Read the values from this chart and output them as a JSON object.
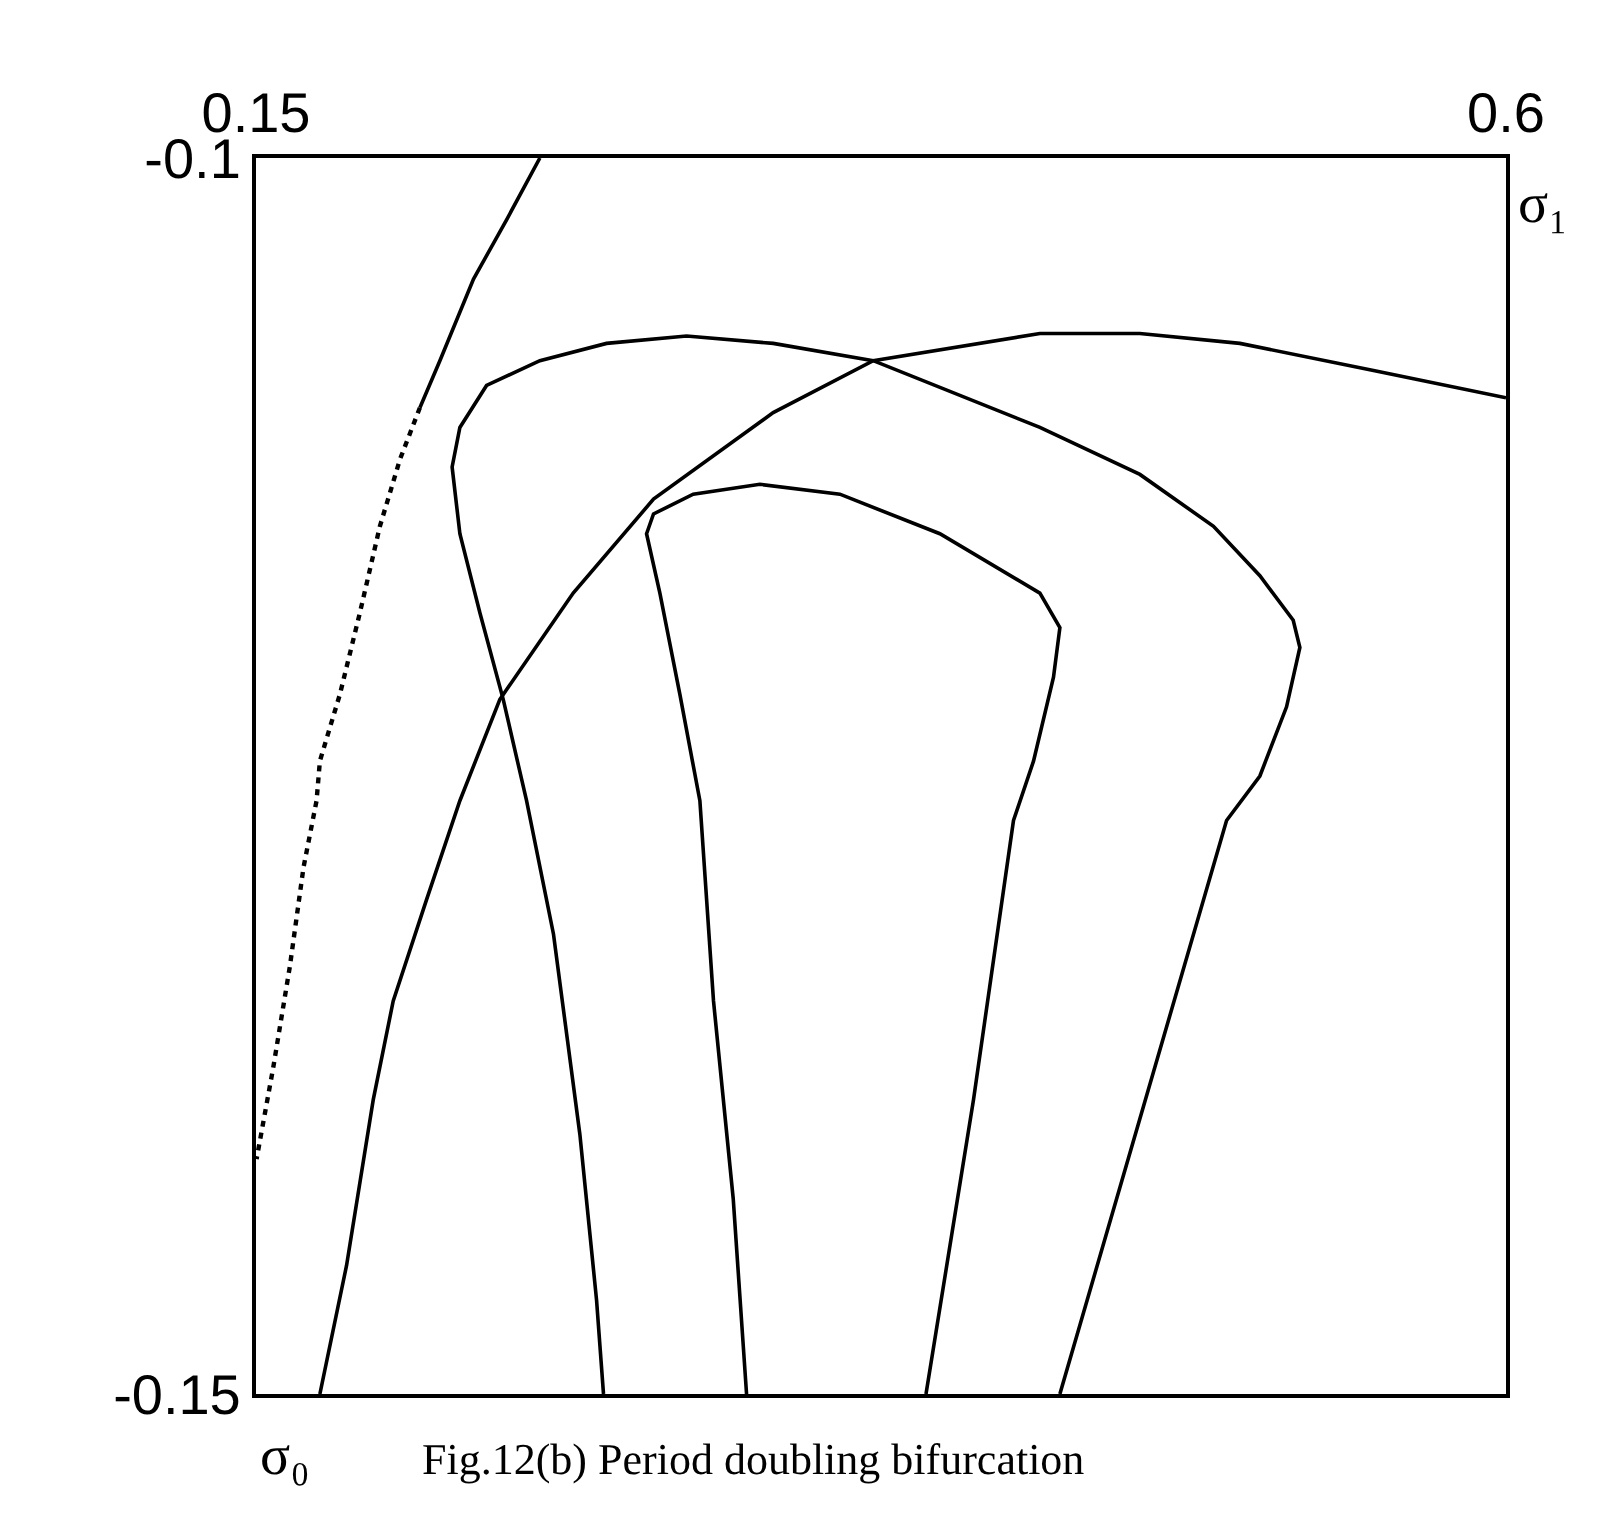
{
  "chart_data": {
    "type": "line",
    "xlabel": "σ₀",
    "ylabel": "σ₁",
    "annotations": [
      "Fig.12(b) Period doubling bifurcation"
    ],
    "xlim": [
      0.15,
      0.6
    ],
    "ylim": [
      -0.15,
      -0.1
    ],
    "xticks": [
      0.15,
      0.6
    ],
    "yticks": [
      -0.1,
      -0.15
    ],
    "marker": "none",
    "line_style": "solid",
    "series": [
      {
        "color": "#000000",
        "x": [
          0.2522,
          0.2402,
          0.2283,
          0.2162,
          0.209
        ],
        "values": [
          -0.1,
          -0.1025,
          -0.1049,
          -0.1082,
          -0.1101
        ]
      },
      {
        "color": "#000000",
        "line_style": "dotted",
        "x": [
          0.209,
          0.2018,
          0.1946,
          0.1874,
          0.1802,
          0.173,
          0.1718,
          0.1671,
          0.1622,
          0.1562,
          0.1502
        ],
        "values": [
          -0.1101,
          -0.1122,
          -0.1149,
          -0.1184,
          -0.1217,
          -0.1244,
          -0.126,
          -0.1287,
          -0.1327,
          -0.1368,
          -0.1405
        ]
      },
      {
        "color": "#000000",
        "x": [
          0.173,
          0.1826,
          0.1922,
          0.1994,
          0.2114,
          0.2234,
          0.2378,
          0.2642,
          0.2931,
          0.3362,
          0.3722,
          0.4322,
          0.4682,
          0.5042,
          0.5523,
          0.6
        ],
        "values": [
          -0.15,
          -0.1448,
          -0.1381,
          -0.1341,
          -0.13,
          -0.126,
          -0.1219,
          -0.1176,
          -0.1138,
          -0.1103,
          -0.1082,
          -0.1071,
          -0.1071,
          -0.1075,
          -0.1086,
          -0.1097
        ]
      },
      {
        "color": "#000000",
        "x": [
          0.2751,
          0.2726,
          0.2666,
          0.2571,
          0.2474,
          0.239,
          0.2306,
          0.2234,
          0.2206,
          0.2234,
          0.233,
          0.2522,
          0.2762,
          0.305,
          0.3362,
          0.3722,
          0.4322,
          0.4682,
          0.4947,
          0.5114,
          0.5234,
          0.5258,
          0.521,
          0.5114,
          0.4994,
          0.4694,
          0.4394
        ],
        "values": [
          -0.15,
          -0.1462,
          -0.1395,
          -0.1314,
          -0.126,
          -0.1219,
          -0.1184,
          -0.1152,
          -0.1125,
          -0.1109,
          -0.1092,
          -0.1082,
          -0.1075,
          -0.1072,
          -0.1075,
          -0.1082,
          -0.1109,
          -0.1128,
          -0.1149,
          -0.1169,
          -0.1187,
          -0.1198,
          -0.1222,
          -0.125,
          -0.1268,
          -0.1384,
          -0.15
        ]
      },
      {
        "color": "#000000",
        "x": [
          0.3266,
          0.3218,
          0.3147,
          0.3098,
          0.3026,
          0.2954,
          0.2906,
          0.2931,
          0.3074,
          0.3314,
          0.3602,
          0.3962,
          0.4322,
          0.4394,
          0.4371,
          0.4299,
          0.4227,
          0.4083,
          0.3912
        ],
        "values": [
          -0.15,
          -0.1421,
          -0.1341,
          -0.126,
          -0.1217,
          -0.1176,
          -0.1152,
          -0.1144,
          -0.1136,
          -0.1132,
          -0.1136,
          -0.1152,
          -0.1176,
          -0.119,
          -0.121,
          -0.1244,
          -0.1268,
          -0.1381,
          -0.15
        ]
      }
    ]
  }
}
